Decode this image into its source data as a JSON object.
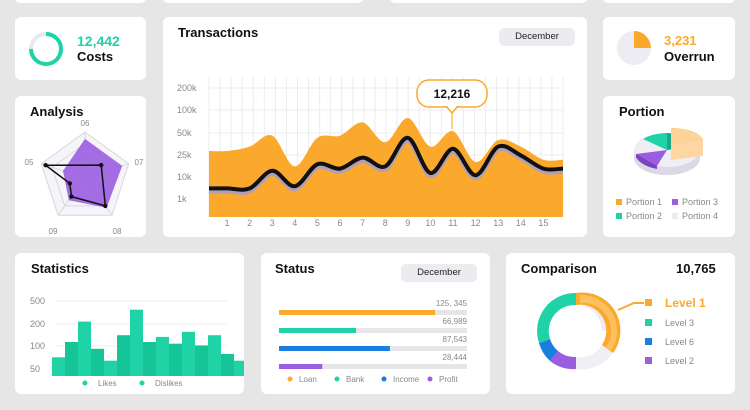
{
  "colors": {
    "orange": "#fba92c",
    "purple": "#9b5ee0",
    "teal": "#1fd3a6",
    "blue": "#1a7ee0"
  },
  "costs": {
    "value": "12,442",
    "label": "Costs",
    "ring_fraction": 0.75
  },
  "overrun": {
    "value": "3,231",
    "label": "Overrun",
    "pie_fraction": 0.25
  },
  "analysis": {
    "title": "Analysis",
    "axis_labels": [
      "06",
      "07",
      "08",
      "09",
      "05"
    ],
    "polygon_a": [
      0.85,
      0.85,
      0.8,
      0.6,
      0.5
    ],
    "polygon_b": [
      0.4,
      0.2,
      0.45,
      0.35,
      0.3
    ]
  },
  "transactions": {
    "title": "Transactions",
    "month": "December",
    "callout": "12,216",
    "chart_data": {
      "type": "area",
      "title": "Transactions",
      "x": [
        1,
        2,
        3,
        4,
        5,
        6,
        7,
        8,
        9,
        10,
        11,
        12,
        13,
        14,
        15
      ],
      "y_ticks": [
        "200k",
        "100k",
        "50k",
        "25k",
        "10k",
        "1k"
      ],
      "series": [
        {
          "values": [
            3.0,
            3.2,
            3.7,
            2.3,
            3.6,
            3.7,
            4.3,
            3.4,
            4.5,
            3.2,
            3.9,
            2.5,
            3.5,
            3.2,
            2.6
          ]
        },
        {
          "values": [
            1.3,
            1.3,
            2.1,
            1.4,
            2.4,
            2.2,
            2.7,
            2.3,
            3.6,
            2.0,
            3.1,
            1.9,
            3.2,
            2.8,
            2.2
          ]
        }
      ]
    }
  },
  "portion": {
    "title": "Portion",
    "legend": [
      "Portion 1",
      "Portion 3",
      "Portion 2",
      "Portion 4"
    ]
  },
  "statistics": {
    "title": "Statistics",
    "chart_data": {
      "type": "bar",
      "y_ticks": [
        "500",
        "200",
        "100",
        "50"
      ],
      "series": [
        {
          "name": "Likes",
          "values": [
            110,
            320,
            90,
            390,
            230,
            260,
            240,
            90
          ]
        },
        {
          "name": "Dislikes",
          "values": [
            200,
            160,
            240,
            200,
            190,
            180,
            130,
            420
          ]
        }
      ]
    }
  },
  "status": {
    "title": "Status",
    "month": "December",
    "bars": [
      {
        "label": "125, 345",
        "fraction": 0.83,
        "color": "#fba92c"
      },
      {
        "label": "66,989",
        "fraction": 0.41,
        "color": "#1fd3a6"
      },
      {
        "label": "87,543",
        "fraction": 0.59,
        "color": "#1a7ee0"
      },
      {
        "label": "28,444",
        "fraction": 0.23,
        "color": "#9b5ee0"
      }
    ],
    "legend": [
      "Loan",
      "Bank",
      "Income",
      "Profit"
    ]
  },
  "comparison": {
    "title": "Comparison",
    "value": "10,765",
    "levels": [
      "Level 1",
      "Level 3",
      "Level 6",
      "Level 2"
    ]
  }
}
